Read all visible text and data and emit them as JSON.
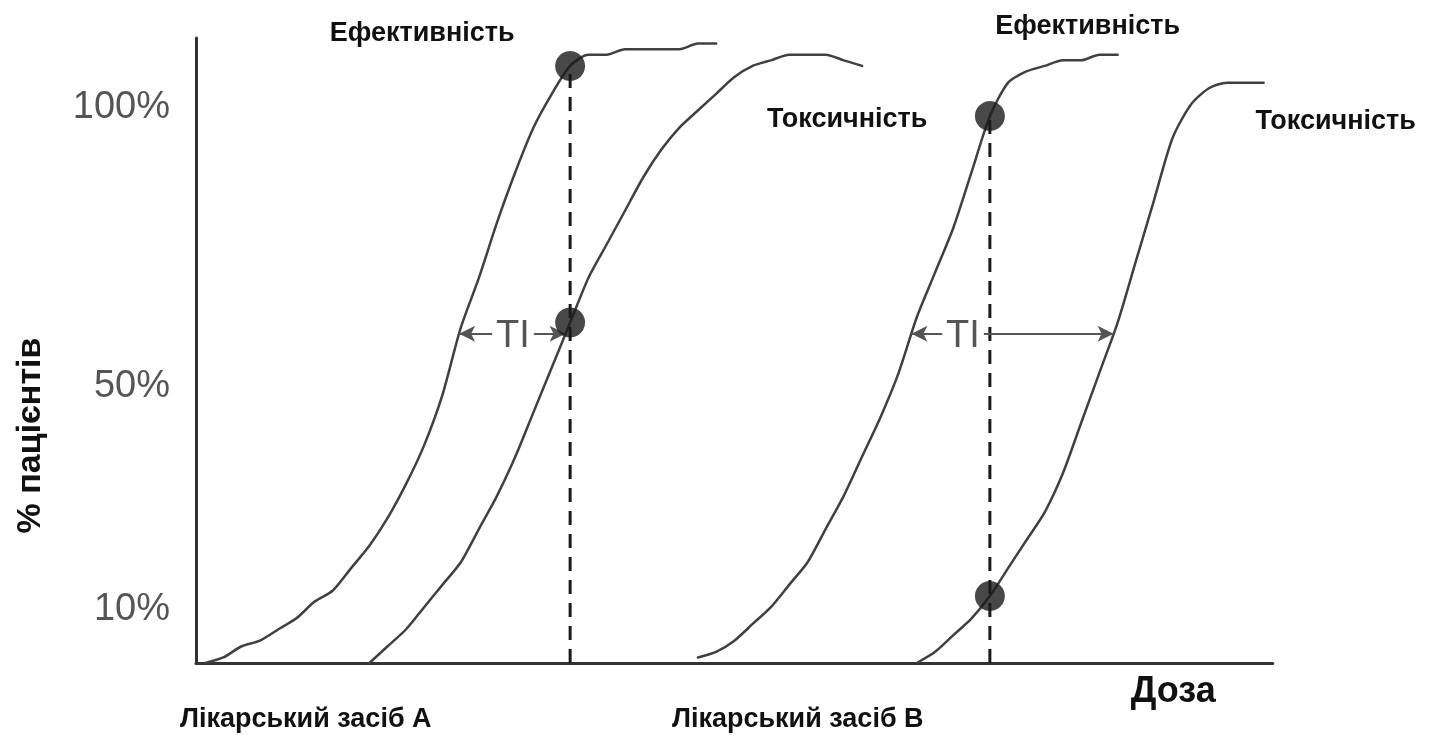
{
  "chart_data": {
    "type": "line",
    "xlabel": "Доза",
    "ylabel": "% пацієнтів",
    "ylim": [
      0,
      112
    ],
    "yticks": [
      {
        "value": 10,
        "label": "10%"
      },
      {
        "value": 50,
        "label": "50%"
      },
      {
        "value": 100,
        "label": "100%"
      }
    ],
    "tick_labels": "y",
    "marker": "none",
    "categories": [
      null,
      null,
      null,
      null,
      null,
      null,
      null,
      null,
      null,
      null,
      null,
      null,
      null,
      null,
      null,
      null,
      null,
      null,
      null,
      null,
      null,
      null,
      null,
      null,
      null,
      null,
      null,
      null,
      null,
      null,
      null,
      null,
      null,
      null,
      null,
      null,
      null,
      null,
      null,
      null,
      null,
      null,
      null,
      null,
      null,
      null,
      null,
      null,
      null,
      null,
      null,
      null,
      null,
      null,
      null,
      null,
      null,
      null,
      null
    ],
    "annotations": [
      {
        "text": "TI",
        "y": 59
      },
      {
        "text": "TI",
        "y": 59
      },
      "Лікарський засіб А",
      "Лікарський засіб В"
    ],
    "series": [
      {
        "name": "Ефективність",
        "color": "#404040",
        "values": [
          0,
          1,
          3,
          4,
          6,
          8,
          11,
          13,
          17,
          21,
          26,
          32,
          39,
          48,
          60,
          69,
          79,
          88,
          96,
          102,
          107,
          109,
          109,
          110,
          110,
          110,
          110,
          111,
          111,
          null,
          null,
          null,
          null,
          null,
          null,
          null,
          null,
          null,
          null,
          null,
          null,
          null,
          null,
          null,
          null,
          null,
          null,
          null,
          null,
          null,
          null,
          null,
          null,
          null,
          null,
          null,
          null,
          null,
          null
        ]
      },
      {
        "name": "Токсичність",
        "color": "#404040",
        "values": [
          null,
          null,
          null,
          null,
          null,
          null,
          null,
          null,
          null,
          0,
          3,
          6,
          10,
          14,
          18,
          24,
          30,
          37,
          45,
          53,
          61,
          69,
          75,
          81,
          87,
          92,
          96,
          99,
          102,
          105,
          107,
          108,
          109,
          109,
          109,
          108,
          107,
          null,
          null,
          null,
          null,
          null,
          null,
          null,
          null,
          null,
          null,
          null,
          null,
          null,
          null,
          null,
          null,
          null,
          null,
          null,
          null,
          null,
          null
        ]
      },
      {
        "name": "Ефективність",
        "color": "#404040",
        "values": [
          null,
          null,
          null,
          null,
          null,
          null,
          null,
          null,
          null,
          null,
          null,
          null,
          null,
          null,
          null,
          null,
          null,
          null,
          null,
          null,
          null,
          null,
          null,
          null,
          null,
          null,
          null,
          1,
          2,
          4,
          7,
          10,
          14,
          18,
          24,
          30,
          37,
          44,
          52,
          62,
          70,
          78,
          88,
          98,
          104,
          106,
          107,
          108,
          108,
          109,
          109,
          null,
          null,
          null,
          null,
          null,
          null,
          null,
          null
        ]
      },
      {
        "name": "Токсичність",
        "color": "#404040",
        "values": [
          null,
          null,
          null,
          null,
          null,
          null,
          null,
          null,
          null,
          null,
          null,
          null,
          null,
          null,
          null,
          null,
          null,
          null,
          null,
          null,
          null,
          null,
          null,
          null,
          null,
          null,
          null,
          null,
          null,
          null,
          null,
          null,
          null,
          null,
          null,
          null,
          null,
          null,
          null,
          0,
          2,
          5,
          8,
          12,
          17,
          22,
          27,
          34,
          43,
          52,
          61,
          72,
          83,
          94,
          100,
          103,
          104,
          104,
          104
        ]
      },
      {
        "type": "lollipop",
        "color": "#1a1a1a",
        "marker": "circle",
        "line_style": "dashed",
        "values": [
          null,
          null,
          null,
          null,
          null,
          null,
          null,
          null,
          null,
          null,
          null,
          null,
          null,
          null,
          null,
          null,
          null,
          null,
          null,
          null,
          107,
          null,
          null,
          null,
          null,
          null,
          null,
          null,
          null,
          null,
          null,
          null,
          null,
          null,
          null,
          null,
          null,
          null,
          null,
          null,
          null,
          null,
          null,
          98,
          null,
          null,
          null,
          null,
          null,
          null,
          null,
          null,
          null,
          null,
          null,
          null,
          null,
          null,
          null
        ]
      },
      {
        "type": "scatter",
        "color": "#1a1a1a",
        "marker": "circle",
        "values": [
          null,
          null,
          null,
          null,
          null,
          null,
          null,
          null,
          null,
          null,
          null,
          null,
          null,
          null,
          null,
          null,
          null,
          null,
          null,
          null,
          61,
          null,
          null,
          null,
          null,
          null,
          null,
          null,
          null,
          null,
          null,
          null,
          null,
          null,
          null,
          null,
          null,
          null,
          null,
          null,
          null,
          null,
          null,
          12,
          null,
          null,
          null,
          null,
          null,
          null,
          null,
          null,
          null,
          null,
          null,
          null,
          null,
          null,
          null
        ]
      }
    ]
  }
}
